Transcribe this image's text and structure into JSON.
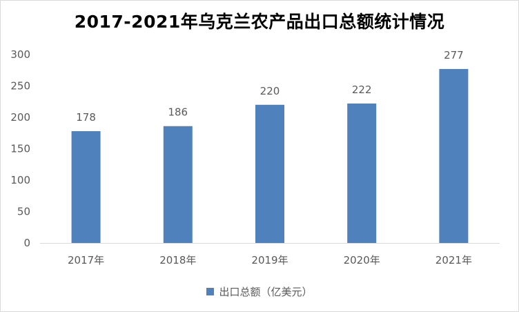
{
  "chart_data": {
    "type": "bar",
    "title": "2017-2021年乌克兰农产品出口总额统计情况",
    "categories": [
      "2017年",
      "2018年",
      "2019年",
      "2020年",
      "2021年"
    ],
    "series": [
      {
        "name": "出口总额（亿美元）",
        "values": [
          178,
          186,
          220,
          222,
          277
        ]
      }
    ],
    "ylim": [
      0,
      300
    ],
    "yticks": [
      0,
      50,
      100,
      150,
      200,
      250,
      300
    ],
    "grid": false,
    "legend": "bottom",
    "colors": {
      "bar": "#4f81bd",
      "axis": "#d9d9d9",
      "text": "#595959"
    }
  }
}
